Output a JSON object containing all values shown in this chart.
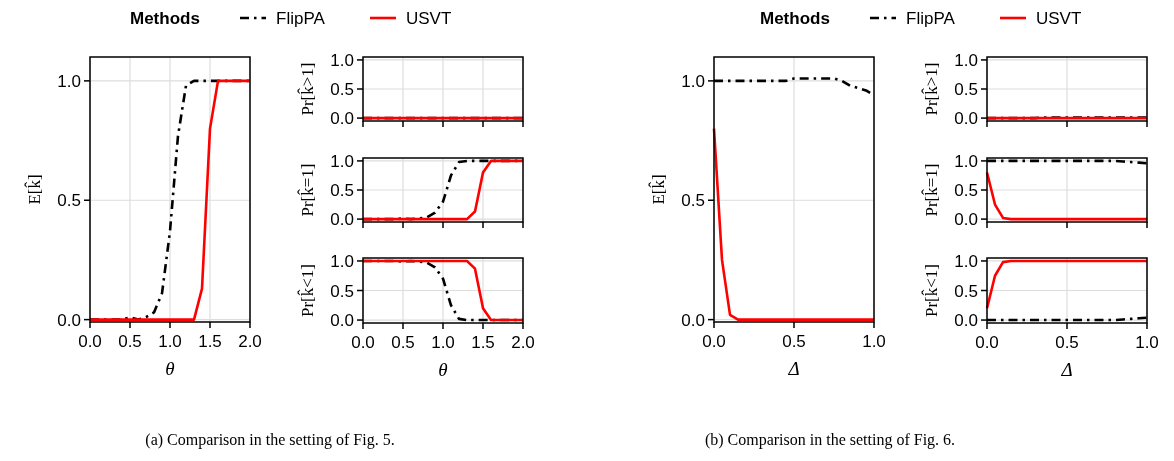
{
  "chart_data": [
    {
      "type": "line",
      "ylabel": "E[k̂]",
      "xlabel": "θ",
      "legend": "top",
      "legend_title": "Methods",
      "grid": true,
      "xlim": [
        0,
        2
      ],
      "ylim": [
        -0.01,
        1.1
      ],
      "xticks": [
        {
          "value": 0,
          "label": "0.0"
        },
        {
          "value": 0.5,
          "label": "0.5"
        },
        {
          "value": 1,
          "label": "1.0"
        },
        {
          "value": 1.5,
          "label": "1.5"
        },
        {
          "value": 2,
          "label": "2.0"
        }
      ],
      "yticks": [
        {
          "value": 0,
          "label": "0.0"
        },
        {
          "value": 0.5,
          "label": "0.5"
        },
        {
          "value": 1,
          "label": "1.0"
        }
      ],
      "x": [
        0,
        0.1,
        0.2,
        0.3,
        0.4,
        0.5,
        0.6,
        0.7,
        0.8,
        0.9,
        1.0,
        1.1,
        1.2,
        1.3,
        1.4,
        1.5,
        1.6,
        1.7,
        1.8,
        1.9,
        2.0
      ],
      "annotations": [
        "(a) Comparison in the setting of Fig. 5."
      ],
      "series": [
        {
          "name": "FlipPA",
          "color": "#000000",
          "line_style": "dashdot",
          "values": [
            0,
            0,
            0,
            0,
            0,
            0.01,
            0,
            0.01,
            0.03,
            0.11,
            0.37,
            0.77,
            0.98,
            1,
            1,
            1,
            1,
            1,
            1,
            1,
            1
          ]
        },
        {
          "name": "USVT",
          "color": "#ff0000",
          "line_style": "solid",
          "values": [
            0,
            0,
            0,
            0,
            0,
            0,
            0,
            0,
            0,
            0,
            0,
            0,
            0,
            0,
            0.13,
            0.8,
            1,
            1,
            1,
            1,
            1
          ]
        }
      ]
    },
    {
      "type": "line",
      "ylabel": "Pr[k̂>1]",
      "tick_labels": "y",
      "grid": true,
      "xlim": [
        0,
        2
      ],
      "ylim": [
        -0.05,
        1.05
      ],
      "xticks": [
        {
          "value": 0,
          "label": null
        },
        {
          "value": 0.5,
          "label": null
        },
        {
          "value": 1,
          "label": null
        },
        {
          "value": 1.5,
          "label": null
        },
        {
          "value": 2,
          "label": null
        }
      ],
      "yticks": [
        {
          "value": 0,
          "label": "0.0"
        },
        {
          "value": 0.5,
          "label": "0.5"
        },
        {
          "value": 1,
          "label": "1.0"
        }
      ],
      "x": [
        0,
        0.1,
        0.2,
        0.3,
        0.4,
        0.5,
        0.6,
        0.7,
        0.8,
        0.9,
        1.0,
        1.1,
        1.2,
        1.3,
        1.4,
        1.5,
        1.6,
        1.7,
        1.8,
        1.9,
        2.0
      ],
      "series": [
        {
          "color": "#000000",
          "line_style": "dashdot",
          "values": [
            0,
            0,
            0,
            0,
            0,
            0,
            0,
            0,
            0,
            0,
            0,
            0,
            0,
            0,
            0,
            0,
            0,
            0,
            0,
            0,
            0
          ]
        },
        {
          "color": "#ff0000",
          "line_style": "solid",
          "values": [
            0,
            0,
            0,
            0,
            0,
            0,
            0,
            0,
            0,
            0,
            0,
            0,
            0,
            0,
            0,
            0,
            0,
            0,
            0,
            0,
            0
          ]
        }
      ]
    },
    {
      "type": "line",
      "ylabel": "Pr[k̂=1]",
      "tick_labels": "y",
      "grid": true,
      "xlim": [
        0,
        2
      ],
      "ylim": [
        -0.05,
        1.05
      ],
      "xticks": [
        {
          "value": 0,
          "label": null
        },
        {
          "value": 0.5,
          "label": null
        },
        {
          "value": 1,
          "label": null
        },
        {
          "value": 1.5,
          "label": null
        },
        {
          "value": 2,
          "label": null
        }
      ],
      "yticks": [
        {
          "value": 0,
          "label": "0.0"
        },
        {
          "value": 0.5,
          "label": "0.5"
        },
        {
          "value": 1,
          "label": "1.0"
        }
      ],
      "x": [
        0,
        0.1,
        0.2,
        0.3,
        0.4,
        0.5,
        0.6,
        0.7,
        0.8,
        0.9,
        1.0,
        1.1,
        1.2,
        1.3,
        1.4,
        1.5,
        1.6,
        1.7,
        1.8,
        1.9,
        2.0
      ],
      "series": [
        {
          "color": "#000000",
          "line_style": "dashdot",
          "values": [
            0,
            0,
            0,
            0,
            0,
            0.01,
            0,
            0.01,
            0.03,
            0.11,
            0.3,
            0.75,
            0.98,
            1,
            1,
            1,
            1,
            1,
            1,
            1,
            1
          ]
        },
        {
          "color": "#ff0000",
          "line_style": "solid",
          "values": [
            0,
            0,
            0,
            0,
            0,
            0,
            0,
            0,
            0,
            0,
            0,
            0,
            0,
            0,
            0.13,
            0.8,
            1,
            1,
            1,
            1,
            1
          ]
        }
      ]
    },
    {
      "type": "line",
      "ylabel": "Pr[k̂<1]",
      "xlabel": "θ",
      "grid": true,
      "xlim": [
        0,
        2
      ],
      "ylim": [
        -0.05,
        1.05
      ],
      "xticks": [
        {
          "value": 0,
          "label": "0.0"
        },
        {
          "value": 0.5,
          "label": "0.5"
        },
        {
          "value": 1,
          "label": "1.0"
        },
        {
          "value": 1.5,
          "label": "1.5"
        },
        {
          "value": 2,
          "label": "2.0"
        }
      ],
      "yticks": [
        {
          "value": 0,
          "label": "0.0"
        },
        {
          "value": 0.5,
          "label": "0.5"
        },
        {
          "value": 1,
          "label": "1.0"
        }
      ],
      "x": [
        0,
        0.1,
        0.2,
        0.3,
        0.4,
        0.5,
        0.6,
        0.7,
        0.8,
        0.9,
        1.0,
        1.1,
        1.2,
        1.3,
        1.4,
        1.5,
        1.6,
        1.7,
        1.8,
        1.9,
        2.0
      ],
      "series": [
        {
          "color": "#000000",
          "line_style": "dashdot",
          "values": [
            1,
            1,
            1,
            1,
            1,
            0.99,
            1,
            0.99,
            0.97,
            0.89,
            0.7,
            0.25,
            0.02,
            0,
            0,
            0,
            0,
            0,
            0,
            0,
            0
          ]
        },
        {
          "color": "#ff0000",
          "line_style": "solid",
          "values": [
            1,
            1,
            1,
            1,
            1,
            1,
            1,
            1,
            1,
            1,
            1,
            1,
            1,
            1,
            0.87,
            0.2,
            0,
            0,
            0,
            0,
            0
          ]
        }
      ]
    },
    {
      "type": "line",
      "ylabel": "E[k̂]",
      "xlabel": "Δ",
      "legend": "top",
      "legend_title": "Methods",
      "grid": true,
      "xlim": [
        0,
        1
      ],
      "ylim": [
        -0.01,
        1.1
      ],
      "xticks": [
        {
          "value": 0,
          "label": "0.0"
        },
        {
          "value": 0.5,
          "label": "0.5"
        },
        {
          "value": 1,
          "label": "1.0"
        }
      ],
      "yticks": [
        {
          "value": 0,
          "label": "0.0"
        },
        {
          "value": 0.5,
          "label": "0.5"
        },
        {
          "value": 1,
          "label": "1.0"
        }
      ],
      "x": [
        0,
        0.05,
        0.1,
        0.15,
        0.2,
        0.25,
        0.3,
        0.35,
        0.4,
        0.45,
        0.5,
        0.55,
        0.6,
        0.65,
        0.7,
        0.75,
        0.8,
        0.85,
        0.9,
        0.95,
        1.0
      ],
      "annotations": [
        "(b) Comparison in the setting of Fig. 6."
      ],
      "series": [
        {
          "name": "FlipPA",
          "color": "#000000",
          "line_style": "dashdot",
          "values": [
            1,
            1,
            1,
            1,
            1,
            1,
            1,
            1,
            1,
            1,
            1.01,
            1.01,
            1.01,
            1.01,
            1.01,
            1.01,
            1,
            0.98,
            0.97,
            0.96,
            0.94
          ]
        },
        {
          "name": "USVT",
          "color": "#ff0000",
          "line_style": "solid",
          "values": [
            0.8,
            0.25,
            0.02,
            0,
            0,
            0,
            0,
            0,
            0,
            0,
            0,
            0,
            0,
            0,
            0,
            0,
            0,
            0,
            0,
            0,
            0
          ]
        }
      ]
    },
    {
      "type": "line",
      "ylabel": "Pr[k̂>1]",
      "tick_labels": "y",
      "grid": true,
      "xlim": [
        0,
        1
      ],
      "ylim": [
        -0.05,
        1.05
      ],
      "xticks": [
        {
          "value": 0,
          "label": null
        },
        {
          "value": 0.5,
          "label": null
        },
        {
          "value": 1,
          "label": null
        }
      ],
      "yticks": [
        {
          "value": 0,
          "label": "0.0"
        },
        {
          "value": 0.5,
          "label": "0.5"
        },
        {
          "value": 1,
          "label": "1.0"
        }
      ],
      "x": [
        0,
        0.05,
        0.1,
        0.15,
        0.2,
        0.25,
        0.3,
        0.35,
        0.4,
        0.45,
        0.5,
        0.55,
        0.6,
        0.65,
        0.7,
        0.75,
        0.8,
        0.85,
        0.9,
        0.95,
        1.0
      ],
      "series": [
        {
          "color": "#000000",
          "line_style": "dashdot",
          "values": [
            0,
            0,
            0,
            0,
            0,
            0,
            0,
            0.01,
            0.01,
            0.01,
            0.01,
            0.01,
            0.01,
            0.01,
            0.01,
            0.01,
            0.01,
            0.01,
            0.01,
            0.01,
            0.01
          ]
        },
        {
          "color": "#ff0000",
          "line_style": "solid",
          "values": [
            0,
            0,
            0,
            0,
            0,
            0,
            0,
            0,
            0,
            0,
            0,
            0,
            0,
            0,
            0,
            0,
            0,
            0,
            0,
            0,
            0
          ]
        }
      ]
    },
    {
      "type": "line",
      "ylabel": "Pr[k̂=1]",
      "tick_labels": "y",
      "grid": true,
      "xlim": [
        0,
        1
      ],
      "ylim": [
        -0.05,
        1.05
      ],
      "xticks": [
        {
          "value": 0,
          "label": null
        },
        {
          "value": 0.5,
          "label": null
        },
        {
          "value": 1,
          "label": null
        }
      ],
      "yticks": [
        {
          "value": 0,
          "label": "0.0"
        },
        {
          "value": 0.5,
          "label": "0.5"
        },
        {
          "value": 1,
          "label": "1.0"
        }
      ],
      "x": [
        0,
        0.05,
        0.1,
        0.15,
        0.2,
        0.25,
        0.3,
        0.35,
        0.4,
        0.45,
        0.5,
        0.55,
        0.6,
        0.65,
        0.7,
        0.75,
        0.8,
        0.85,
        0.9,
        0.95,
        1.0
      ],
      "series": [
        {
          "color": "#000000",
          "line_style": "dashdot",
          "values": [
            1,
            1,
            1,
            1,
            1,
            1,
            1,
            1,
            1,
            1,
            1,
            1,
            1,
            1,
            1,
            1,
            1,
            0.99,
            0.98,
            0.97,
            0.96
          ]
        },
        {
          "color": "#ff0000",
          "line_style": "solid",
          "values": [
            0.8,
            0.25,
            0.02,
            0,
            0,
            0,
            0,
            0,
            0,
            0,
            0,
            0,
            0,
            0,
            0,
            0,
            0,
            0,
            0,
            0,
            0
          ]
        }
      ]
    },
    {
      "type": "line",
      "ylabel": "Pr[k̂<1]",
      "xlabel": "Δ",
      "grid": true,
      "xlim": [
        0,
        1
      ],
      "ylim": [
        -0.05,
        1.05
      ],
      "xticks": [
        {
          "value": 0,
          "label": "0.0"
        },
        {
          "value": 0.5,
          "label": "0.5"
        },
        {
          "value": 1,
          "label": "1.0"
        }
      ],
      "yticks": [
        {
          "value": 0,
          "label": "0.0"
        },
        {
          "value": 0.5,
          "label": "0.5"
        },
        {
          "value": 1,
          "label": "1.0"
        }
      ],
      "x": [
        0,
        0.05,
        0.1,
        0.15,
        0.2,
        0.25,
        0.3,
        0.35,
        0.4,
        0.45,
        0.5,
        0.55,
        0.6,
        0.65,
        0.7,
        0.75,
        0.8,
        0.85,
        0.9,
        0.95,
        1.0
      ],
      "series": [
        {
          "color": "#000000",
          "line_style": "dashdot",
          "values": [
            0,
            0,
            0,
            0,
            0,
            0,
            0,
            0,
            0,
            0,
            0,
            0,
            0,
            0,
            0,
            0,
            0,
            0.01,
            0.02,
            0.03,
            0.04
          ]
        },
        {
          "color": "#ff0000",
          "line_style": "solid",
          "values": [
            0.2,
            0.75,
            0.98,
            1,
            1,
            1,
            1,
            1,
            1,
            1,
            1,
            1,
            1,
            1,
            1,
            1,
            1,
            1,
            1,
            1,
            1
          ]
        }
      ]
    }
  ]
}
